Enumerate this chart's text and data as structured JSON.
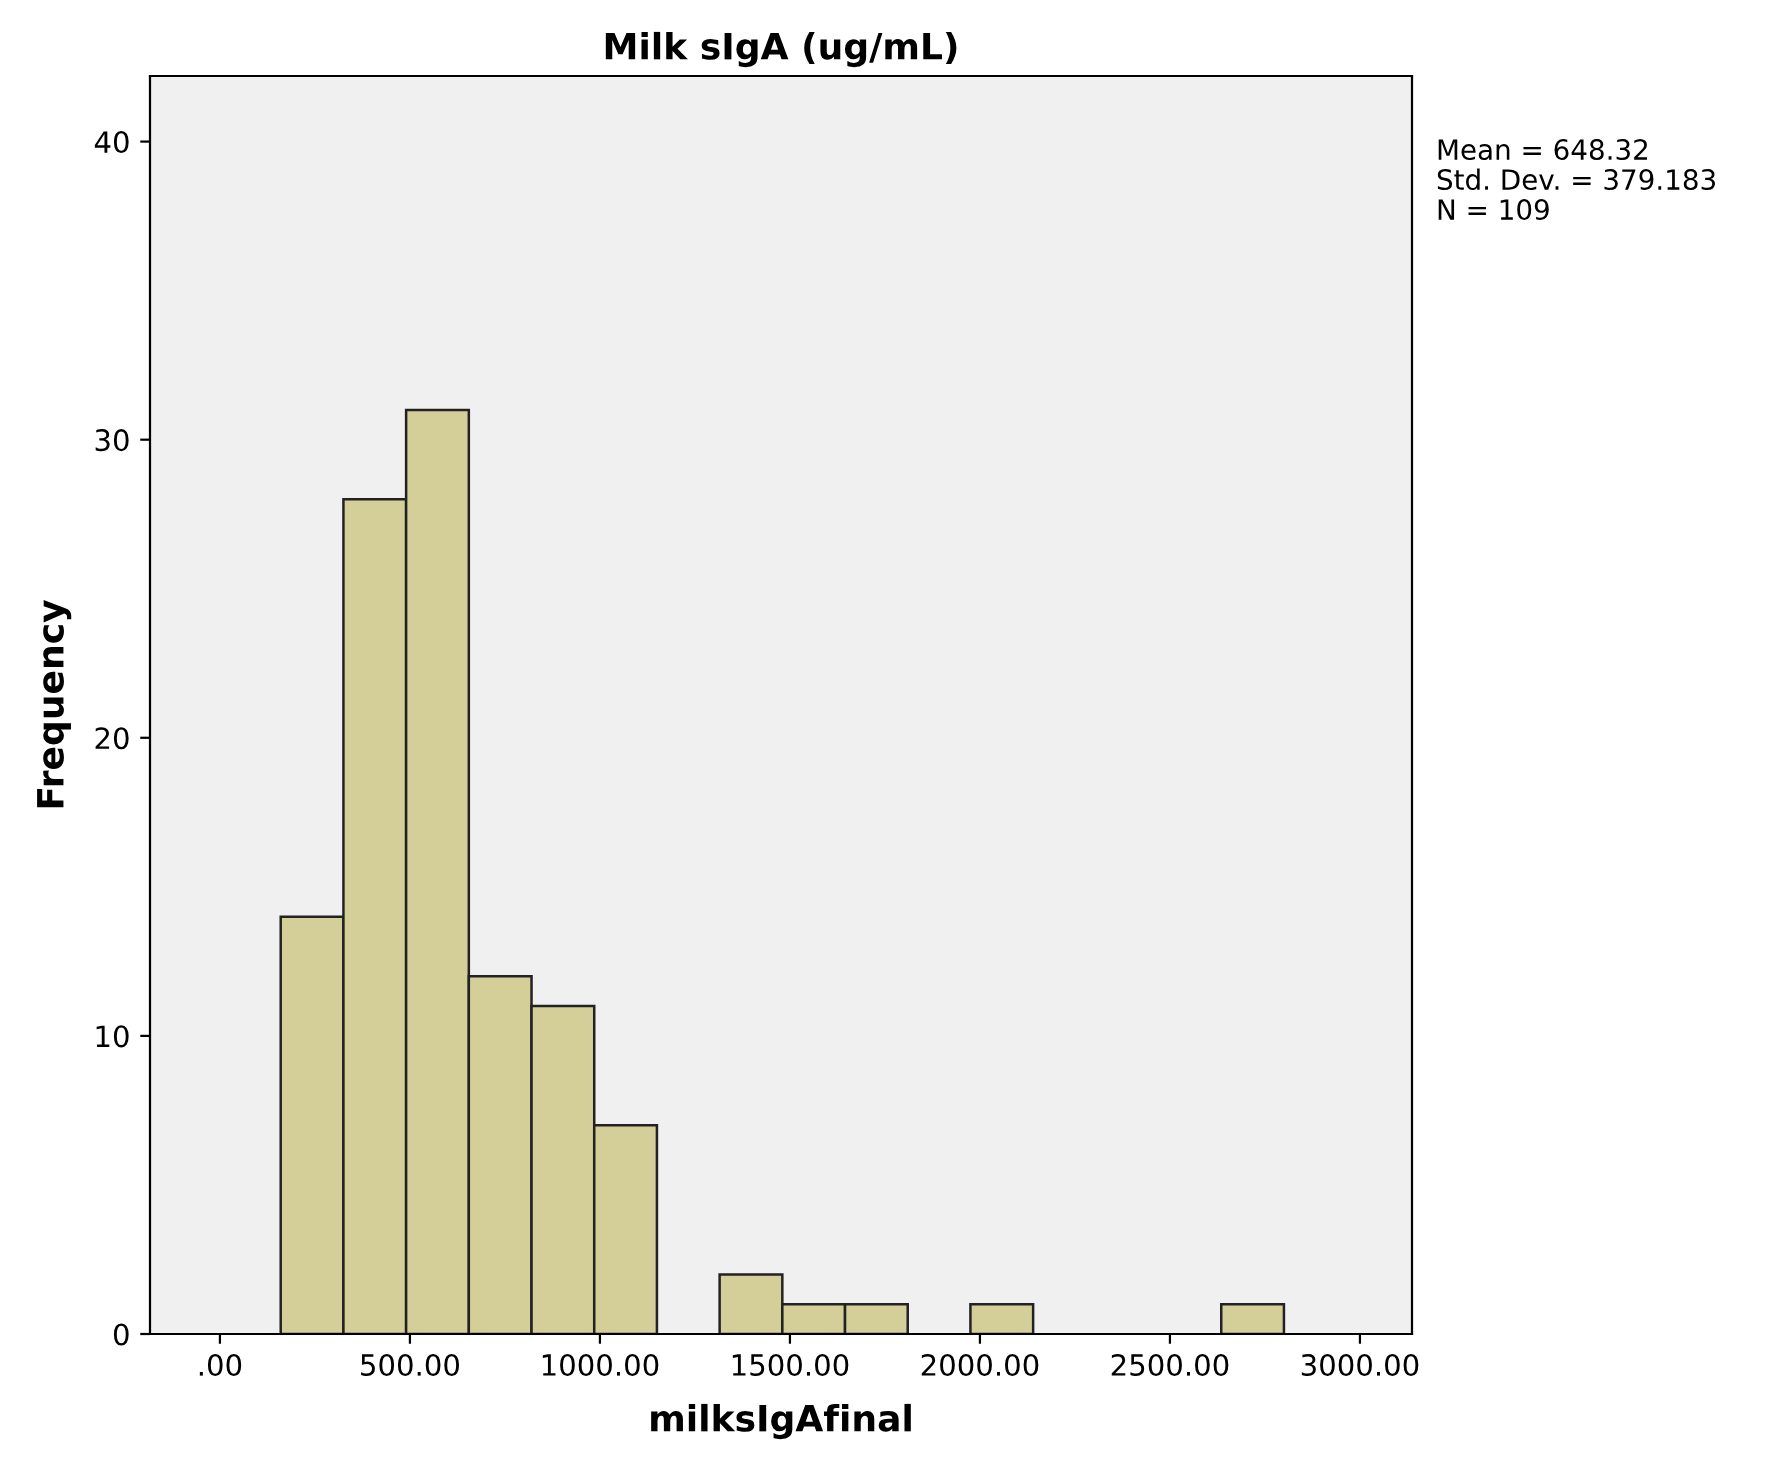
{
  "chart_data": {
    "type": "histogram",
    "title": "Milk sIgA (ug/mL)",
    "xlabel": "milksIgAfinal",
    "ylabel": "Frequency",
    "bins": [
      160,
      325,
      490,
      655,
      820,
      985,
      1150,
      1315,
      1480,
      1645,
      1810,
      1975,
      2140,
      2305,
      2470,
      2635,
      2800
    ],
    "values": [
      14,
      28,
      31,
      12,
      11,
      7,
      0,
      2,
      1,
      1,
      0,
      1,
      0,
      0,
      0,
      1
    ],
    "color": "#d4cf98",
    "xlim": [
      -184,
      3137
    ],
    "ylim": [
      0,
      42.2
    ],
    "xticks": [
      {
        "value": 0,
        "label": ".00"
      },
      {
        "value": 500,
        "label": "500.00"
      },
      {
        "value": 1000,
        "label": "1000.00"
      },
      {
        "value": 1500,
        "label": "1500.00"
      },
      {
        "value": 2000,
        "label": "2000.00"
      },
      {
        "value": 2500,
        "label": "2500.00"
      },
      {
        "value": 3000,
        "label": "3000.00"
      }
    ],
    "yticks": [
      0,
      10,
      20,
      30,
      40
    ],
    "grid": false,
    "annotations": [
      "Mean = 648.32",
      "Std. Dev. = 379.183",
      "N = 109"
    ]
  }
}
